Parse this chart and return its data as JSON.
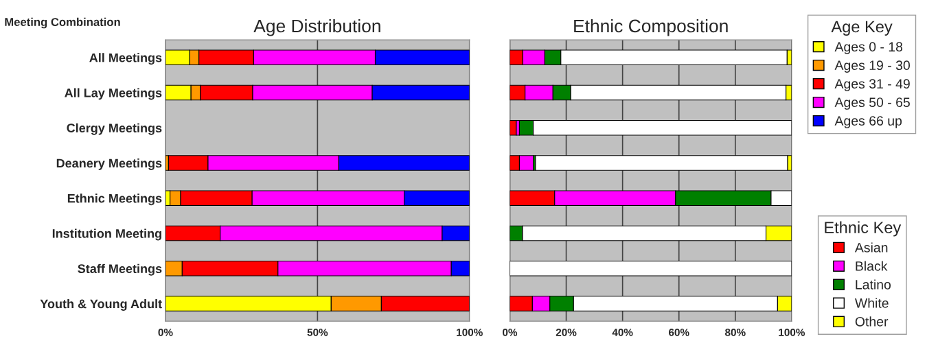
{
  "chart_data": [
    {
      "type": "bar",
      "orientation": "horizontal",
      "stacked": true,
      "title": "Age Distribution",
      "ylabel": "Meeting Combination",
      "legend_title": "Age Key",
      "legend": "top right",
      "grid": "x",
      "categories": [
        "All Meetings",
        "All Lay Meetings",
        "Clergy Meetings",
        "Deanery Meetings",
        "Ethnic Meetings",
        "Institution Meeting",
        "Staff Meetings",
        "Youth & Young Adult"
      ],
      "xlim": [
        0,
        100
      ],
      "xticks": [
        {
          "value": 0,
          "label": "0%"
        },
        {
          "value": 50,
          "label": "50%"
        },
        {
          "value": 100,
          "label": "100%"
        }
      ],
      "series": [
        {
          "name": "Ages 0 - 18",
          "color": "#ffff00",
          "values": [
            8,
            8.4,
            null,
            null,
            1.5,
            null,
            null,
            54.5
          ]
        },
        {
          "name": "Ages 19 - 30",
          "color": "#ff9900",
          "values": [
            3,
            3.1,
            null,
            1,
            3.5,
            null,
            5.5,
            16.5
          ]
        },
        {
          "name": "Ages 31 - 49",
          "color": "#ff0000",
          "values": [
            18,
            17.2,
            null,
            13,
            23.5,
            18,
            31.5,
            29
          ]
        },
        {
          "name": "Ages 50 - 65",
          "color": "#ff00ff",
          "values": [
            40,
            39.3,
            null,
            43,
            50,
            73,
            57,
            null
          ]
        },
        {
          "name": "Ages 66 up",
          "color": "#0000ff",
          "values": [
            31,
            32,
            null,
            43,
            21.5,
            9,
            6,
            null
          ]
        }
      ]
    },
    {
      "type": "bar",
      "orientation": "horizontal",
      "stacked": true,
      "title": "Ethnic Composition",
      "legend_title": "Ethnic Key",
      "legend": "bottom right",
      "grid": "x",
      "categories": [
        null,
        null,
        null,
        null,
        null,
        null,
        null,
        null
      ],
      "xlim": [
        0,
        100
      ],
      "xticks": [
        {
          "value": 0,
          "label": "0%"
        },
        {
          "value": 20,
          "label": "20%"
        },
        {
          "value": 40,
          "label": "40%"
        },
        {
          "value": 60,
          "label": "60%"
        },
        {
          "value": 80,
          "label": "80%"
        },
        {
          "value": 100,
          "label": "100%"
        }
      ],
      "series": [
        {
          "name": "Asian",
          "color": "#ff0000",
          "values": [
            4.6,
            5.4,
            2.3,
            3.4,
            15.9,
            null,
            null,
            8
          ]
        },
        {
          "name": "Black",
          "color": "#ff00ff",
          "values": [
            7.8,
            9.9,
            1.1,
            4.9,
            42.9,
            null,
            null,
            6.2
          ]
        },
        {
          "name": "Latino",
          "color": "#008000",
          "values": [
            5.7,
            6.3,
            4.9,
            0.8,
            33.9,
            4.5,
            null,
            8.4
          ]
        },
        {
          "name": "White",
          "color": "#ffffff",
          "values": [
            80.3,
            76.4,
            91.7,
            89.5,
            7.3,
            86.4,
            100,
            72.4
          ]
        },
        {
          "name": "Other",
          "color": "#ffff00",
          "values": [
            1.6,
            2,
            null,
            1.4,
            null,
            9.1,
            null,
            5
          ]
        }
      ]
    }
  ]
}
